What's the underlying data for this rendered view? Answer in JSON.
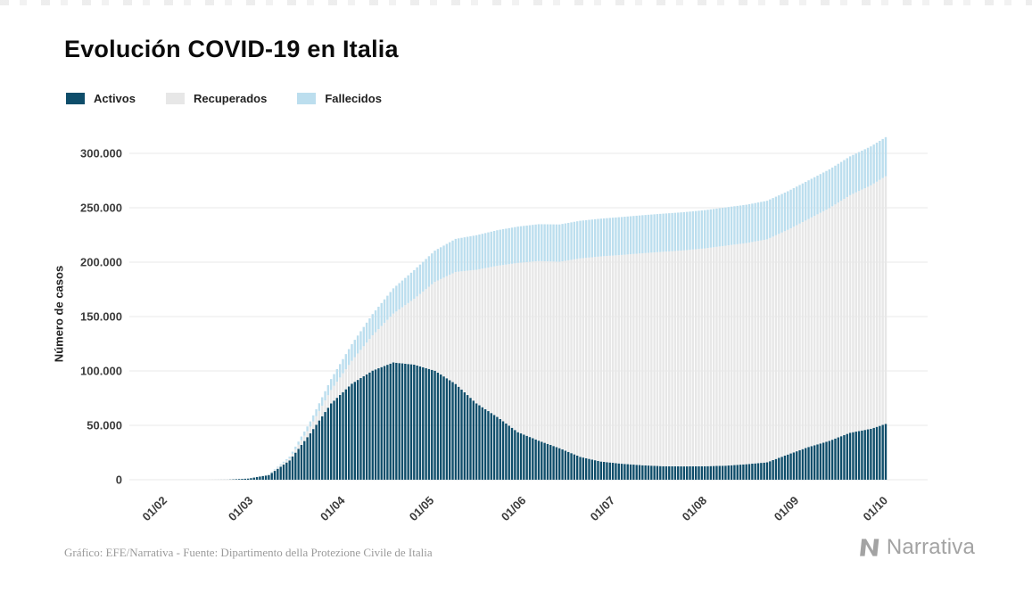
{
  "header": {
    "title": "Evolución COVID-19 en Italia"
  },
  "footer": {
    "credit": "Gráfico: EFE/Narrativa - Fuente: Dipartimento della Protezione Civile de Italia",
    "brand": "Narrativa"
  },
  "chart_data": {
    "type": "bar",
    "stacked": true,
    "title": "Evolución COVID-19 en Italia",
    "xlabel": "",
    "ylabel": "Número de casos",
    "ylim": [
      0,
      320000
    ],
    "grid": true,
    "legend_position": "top",
    "yticks": [
      0,
      50000,
      100000,
      150000,
      200000,
      250000,
      300000
    ],
    "ytick_labels": [
      "0",
      "50.000",
      "100.000",
      "150.000",
      "200.000",
      "250.000",
      "300.000"
    ],
    "xtick_labels": [
      "01/02",
      "01/03",
      "01/04",
      "01/05",
      "01/06",
      "01/07",
      "01/08",
      "01/09",
      "01/10"
    ],
    "x": [
      "01/02",
      "08/02",
      "15/02",
      "22/02",
      "29/02",
      "07/03",
      "14/03",
      "21/03",
      "28/03",
      "04/04",
      "11/04",
      "18/04",
      "25/04",
      "02/05",
      "09/05",
      "16/05",
      "23/05",
      "30/05",
      "06/06",
      "13/06",
      "20/06",
      "27/06",
      "04/07",
      "11/07",
      "18/07",
      "25/07",
      "01/08",
      "08/08",
      "15/08",
      "22/08",
      "29/08",
      "05/09",
      "12/09",
      "19/09",
      "26/09",
      "01/10"
    ],
    "series": [
      {
        "name": "Activos",
        "color": "#0e4d6a",
        "values": [
          0,
          0,
          3,
          70,
          1050,
          4300,
          17750,
          42700,
          70100,
          88300,
          100300,
          107800,
          105800,
          100200,
          88000,
          70200,
          57750,
          43700,
          35900,
          29000,
          21000,
          16700,
          14700,
          13300,
          12400,
          12250,
          12400,
          12900,
          14250,
          16000,
          23150,
          30100,
          35700,
          43200,
          46800,
          51300
        ]
      },
      {
        "name": "Recuperados",
        "color": "#e7e7e7",
        "values": [
          0,
          0,
          0,
          1,
          50,
          590,
          1970,
          6070,
          12400,
          21000,
          32500,
          44900,
          60500,
          81700,
          103000,
          122800,
          138850,
          155600,
          165100,
          171350,
          182450,
          188600,
          191950,
          194900,
          197150,
          198600,
          200250,
          202250,
          203300,
          205000,
          206550,
          209600,
          213950,
          218350,
          223800,
          227700
        ]
      },
      {
        "name": "Fallecidos",
        "color": "#bcdeee",
        "values": [
          0,
          0,
          0,
          2,
          30,
          200,
          1440,
          4830,
          10020,
          15360,
          19470,
          23230,
          26380,
          28710,
          30400,
          31760,
          32740,
          33400,
          33900,
          34300,
          34600,
          34720,
          34860,
          34950,
          35040,
          35100,
          35150,
          35190,
          35230,
          35430,
          35470,
          35540,
          35620,
          35710,
          35820,
          35900
        ]
      }
    ]
  }
}
